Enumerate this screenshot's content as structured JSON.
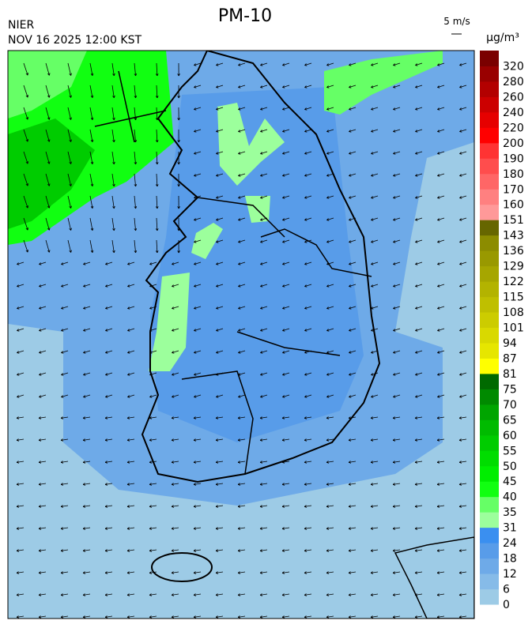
{
  "header": {
    "title": "PM-10",
    "agency": "NIER",
    "datetime": "NOV 16 2025 12:00 KST"
  },
  "wind_scale": {
    "label": "5 m/s"
  },
  "legend": {
    "unit": "μg/m³",
    "items": [
      {
        "label": 0,
        "color": "#9dcbe6"
      },
      {
        "label": 6,
        "color": "#86bbe8"
      },
      {
        "label": 12,
        "color": "#6eaae8"
      },
      {
        "label": 18,
        "color": "#589ce9"
      },
      {
        "label": 24,
        "color": "#3a8ff0"
      },
      {
        "label": 31,
        "color": "#9cff9c"
      },
      {
        "label": 35,
        "color": "#66ff66"
      },
      {
        "label": 40,
        "color": "#11ff11"
      },
      {
        "label": 45,
        "color": "#00ee00"
      },
      {
        "label": 50,
        "color": "#00dd00"
      },
      {
        "label": 55,
        "color": "#00cc00"
      },
      {
        "label": 60,
        "color": "#00bb00"
      },
      {
        "label": 65,
        "color": "#00a500"
      },
      {
        "label": 70,
        "color": "#008a00"
      },
      {
        "label": 75,
        "color": "#006a00"
      },
      {
        "label": 81,
        "color": "#ffff00"
      },
      {
        "label": 87,
        "color": "#e6e600"
      },
      {
        "label": 94,
        "color": "#d9d900"
      },
      {
        "label": 101,
        "color": "#cccc00"
      },
      {
        "label": 108,
        "color": "#bfbf00"
      },
      {
        "label": 115,
        "color": "#b3b300"
      },
      {
        "label": 122,
        "color": "#a6a600"
      },
      {
        "label": 129,
        "color": "#999900"
      },
      {
        "label": 136,
        "color": "#8c8c00"
      },
      {
        "label": 143,
        "color": "#666600"
      },
      {
        "label": 151,
        "color": "#ff9999"
      },
      {
        "label": 160,
        "color": "#ff8080"
      },
      {
        "label": 170,
        "color": "#ff6666"
      },
      {
        "label": 180,
        "color": "#ff4d4d"
      },
      {
        "label": 190,
        "color": "#ff3333"
      },
      {
        "label": 200,
        "color": "#ff0000"
      },
      {
        "label": 220,
        "color": "#e60000"
      },
      {
        "label": 240,
        "color": "#cc0000"
      },
      {
        "label": 260,
        "color": "#b30000"
      },
      {
        "label": 280,
        "color": "#990000"
      },
      {
        "label": 320,
        "color": "#7a0000"
      }
    ]
  }
}
